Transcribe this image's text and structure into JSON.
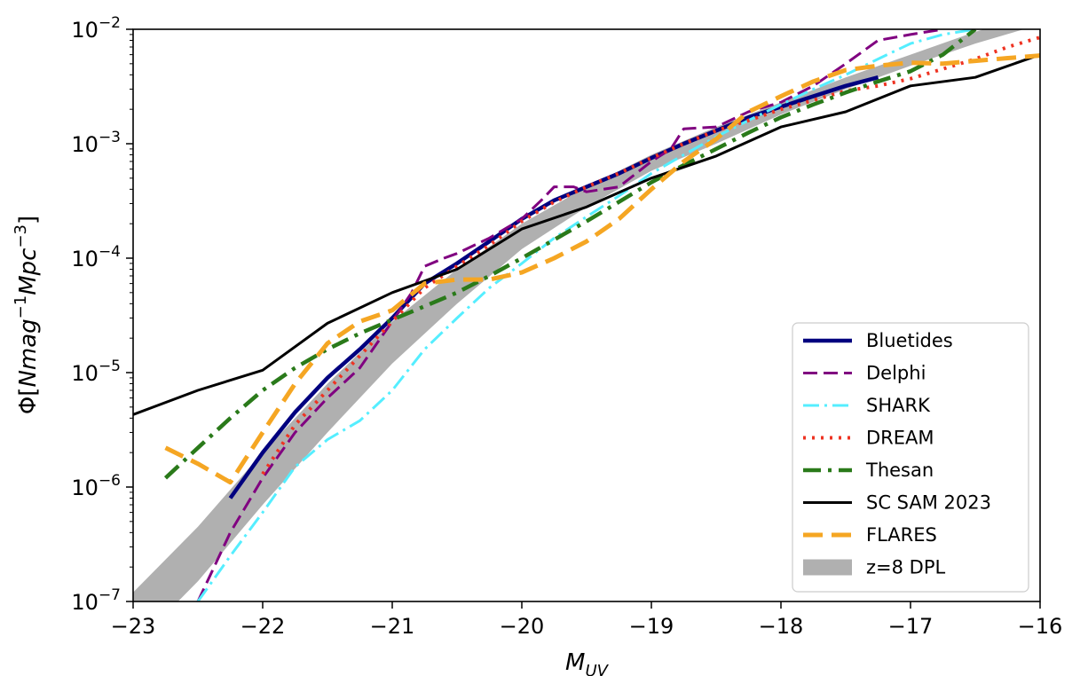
{
  "chart_data": {
    "type": "line",
    "xlabel": "M",
    "xlabel_sub": "UV",
    "ylabel": "Φ[Nmag⁻¹Mpc⁻³]",
    "ylabel_parts": {
      "pre": "Φ[",
      "n1": "Nmag",
      "e1": "−1",
      "n2": "Mpc",
      "e2": "−3",
      "post": "]"
    },
    "xlim": [
      -23,
      -16
    ],
    "ylim": [
      1e-07,
      0.01
    ],
    "yscale": "log",
    "grid": false,
    "legend_position": "lower-right",
    "xticks": [
      -23,
      -22,
      -21,
      -20,
      -19,
      -18,
      -17,
      -16
    ],
    "xtick_labels": [
      "−23",
      "−22",
      "−21",
      "−20",
      "−19",
      "−18",
      "−17",
      "−16"
    ],
    "yticks": [
      {
        "value": 0.01,
        "base": "10",
        "exp": "−2"
      },
      {
        "value": 0.001,
        "base": "10",
        "exp": "−3"
      },
      {
        "value": 0.0001,
        "base": "10",
        "exp": "−4"
      },
      {
        "value": 1e-05,
        "base": "10",
        "exp": "−5"
      },
      {
        "value": 1e-06,
        "base": "10",
        "exp": "−6"
      },
      {
        "value": 1e-07,
        "base": "10",
        "exp": "−7"
      }
    ],
    "band": {
      "name": "z=8 DPL",
      "color": "#b0b0b0",
      "x": [
        -23,
        -22.5,
        -22,
        -21.5,
        -21,
        -20.5,
        -20,
        -19.5,
        -19,
        -18.5,
        -18,
        -17.5,
        -17,
        -16.5,
        -16
      ],
      "lower": [
        4e-08,
        1.5e-07,
        7e-07,
        3e-06,
        1.2e-05,
        4e-05,
        0.00012,
        0.00028,
        0.00058,
        0.001,
        0.0018,
        0.003,
        0.0048,
        0.0075,
        0.011
      ],
      "upper": [
        1.2e-07,
        4.5e-07,
        2e-06,
        8e-06,
        2.8e-05,
        8e-05,
        0.0002,
        0.00042,
        0.0008,
        0.0014,
        0.0023,
        0.0038,
        0.006,
        0.0095,
        0.014
      ]
    },
    "series": [
      {
        "name": "Bluetides",
        "color": "#00007f",
        "width": 4.5,
        "dash": "",
        "x": [
          -22.25,
          -22.0,
          -21.75,
          -21.5,
          -21.25,
          -21.0,
          -20.75,
          -20.5,
          -20.25,
          -20.0,
          -19.75,
          -19.5,
          -19.25,
          -19.0,
          -18.75,
          -18.5,
          -18.25,
          -18.0,
          -17.75,
          -17.5,
          -17.25
        ],
        "y": [
          8e-07,
          2e-06,
          4.5e-06,
          9e-06,
          1.6e-05,
          3e-05,
          6e-05,
          9e-05,
          0.00014,
          0.00022,
          0.00032,
          0.00042,
          0.00055,
          0.00075,
          0.001,
          0.0013,
          0.0017,
          0.0021,
          0.0026,
          0.0032,
          0.0038
        ]
      },
      {
        "name": "Delphi",
        "color": "#800080",
        "width": 3,
        "dash": "16 7",
        "x": [
          -22.5,
          -22.25,
          -22.0,
          -21.75,
          -21.5,
          -21.25,
          -21.0,
          -20.85,
          -20.75,
          -20.6,
          -20.5,
          -20.25,
          -20.0,
          -19.85,
          -19.75,
          -19.6,
          -19.5,
          -19.25,
          -19.0,
          -18.85,
          -18.75,
          -18.5,
          -18.25,
          -18.0,
          -17.75,
          -17.5,
          -17.25,
          -17.0,
          -16.75
        ],
        "y": [
          1e-07,
          4e-07,
          1.2e-06,
          3e-06,
          6e-06,
          1.1e-05,
          2.8e-05,
          5e-05,
          8.5e-05,
          0.0001,
          0.00011,
          0.00015,
          0.00022,
          0.00032,
          0.00042,
          0.00042,
          0.00038,
          0.00042,
          0.0007,
          0.0009,
          0.00135,
          0.0014,
          0.0019,
          0.0023,
          0.0032,
          0.005,
          0.008,
          0.009,
          0.01
        ]
      },
      {
        "name": "SHARK",
        "color": "#55eeff",
        "width": 3,
        "dash": "18 6 3 6",
        "x": [
          -22.5,
          -22.25,
          -22.0,
          -21.75,
          -21.5,
          -21.25,
          -21.0,
          -20.75,
          -20.5,
          -20.25,
          -20.0,
          -19.75,
          -19.5,
          -19.25,
          -19.0,
          -18.75,
          -18.5,
          -18.25,
          -18.0,
          -17.75,
          -17.5,
          -17.25,
          -17.0,
          -16.75,
          -16.5
        ],
        "y": [
          1e-07,
          2.5e-07,
          6e-07,
          1.5e-06,
          2.6e-06,
          3.8e-06,
          7e-06,
          1.6e-05,
          3e-05,
          5.5e-05,
          9e-05,
          0.00015,
          0.00023,
          0.00035,
          0.00055,
          0.0008,
          0.00115,
          0.0016,
          0.0022,
          0.003,
          0.004,
          0.0055,
          0.0075,
          0.009,
          0.01
        ]
      },
      {
        "name": "DREAM",
        "color": "#ee3322",
        "width": 4,
        "dash": "3 7",
        "x": [
          -22.0,
          -21.75,
          -21.5,
          -21.25,
          -21.0,
          -20.75,
          -20.5,
          -20.25,
          -20.0,
          -19.75,
          -19.5,
          -19.25,
          -19.0,
          -18.75,
          -18.5,
          -18.25,
          -18.0,
          -17.75,
          -17.5,
          -17.25,
          -17.0,
          -16.75,
          -16.5,
          -16.25,
          -16.0
        ],
        "y": [
          1.3e-06,
          3.5e-06,
          7e-06,
          1.4e-05,
          2.8e-05,
          5.5e-05,
          8.5e-05,
          0.00013,
          0.00021,
          0.00031,
          0.00042,
          0.00055,
          0.00075,
          0.001,
          0.0013,
          0.0016,
          0.002,
          0.0024,
          0.0029,
          0.0032,
          0.0037,
          0.0045,
          0.0055,
          0.007,
          0.0085
        ]
      },
      {
        "name": "Thesan",
        "color": "#2a7a1a",
        "width": 4.5,
        "dash": "20 8 4 8",
        "x": [
          -22.75,
          -22.5,
          -22.25,
          -22.0,
          -21.75,
          -21.5,
          -21.25,
          -21.0,
          -20.75,
          -20.5,
          -20.25,
          -20.0,
          -19.75,
          -19.5,
          -19.25,
          -19.0,
          -18.75,
          -18.5,
          -18.25,
          -18.0,
          -17.75,
          -17.5,
          -17.25,
          -17.0,
          -16.75,
          -16.5
        ],
        "y": [
          1.2e-06,
          2.2e-06,
          4e-06,
          7e-06,
          1.1e-05,
          1.6e-05,
          2.2e-05,
          2.9e-05,
          3.8e-05,
          5e-05,
          7e-05,
          0.0001,
          0.000145,
          0.00021,
          0.00031,
          0.00046,
          0.00065,
          0.0009,
          0.00125,
          0.0017,
          0.0022,
          0.0028,
          0.0035,
          0.0043,
          0.006,
          0.01
        ]
      },
      {
        "name": "SC SAM 2023",
        "color": "#000000",
        "width": 3,
        "dash": "",
        "x": [
          -23.0,
          -22.5,
          -22.0,
          -21.5,
          -21.0,
          -20.5,
          -20.0,
          -19.5,
          -19.0,
          -18.5,
          -18.0,
          -17.5,
          -17.0,
          -16.5,
          -16.0
        ],
        "y": [
          4.3e-06,
          7e-06,
          1.05e-05,
          2.7e-05,
          5e-05,
          8e-05,
          0.00018,
          0.00028,
          0.0005,
          0.00078,
          0.0014,
          0.0019,
          0.0032,
          0.0038,
          0.006
        ]
      },
      {
        "name": "FLARES",
        "color": "#f5a623",
        "width": 5,
        "dash": "22 10",
        "x": [
          -22.75,
          -22.5,
          -22.25,
          -22.0,
          -21.75,
          -21.5,
          -21.25,
          -21.0,
          -20.75,
          -20.5,
          -20.25,
          -20.0,
          -19.75,
          -19.5,
          -19.25,
          -19.0,
          -18.75,
          -18.5,
          -18.25,
          -18.0,
          -17.75,
          -17.5,
          -17.25,
          -17.0,
          -16.75,
          -16.5,
          -16.25,
          -16.0
        ],
        "y": [
          2.2e-06,
          1.6e-06,
          1.1e-06,
          3e-06,
          8e-06,
          1.8e-05,
          2.8e-05,
          3.5e-05,
          6e-05,
          6.5e-05,
          6.5e-05,
          7.5e-05,
          0.0001,
          0.00014,
          0.00022,
          0.0004,
          0.0007,
          0.0011,
          0.0019,
          0.0026,
          0.0035,
          0.0044,
          0.0048,
          0.0051,
          0.005,
          0.0053,
          0.0056,
          0.0059
        ]
      }
    ]
  }
}
